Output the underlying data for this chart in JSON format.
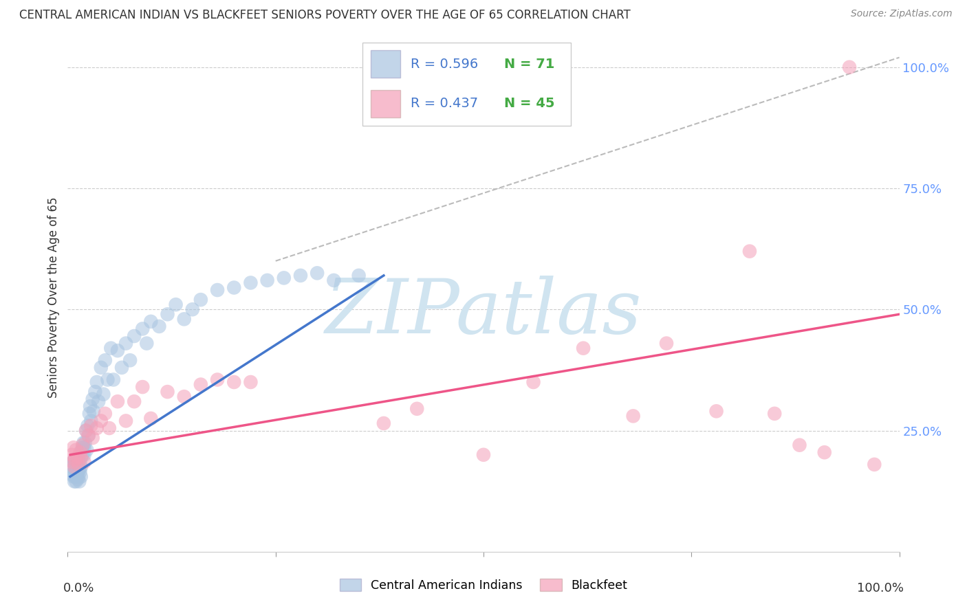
{
  "title": "CENTRAL AMERICAN INDIAN VS BLACKFEET SENIORS POVERTY OVER THE AGE OF 65 CORRELATION CHART",
  "source": "Source: ZipAtlas.com",
  "ylabel": "Seniors Poverty Over the Age of 65",
  "legend_blue_r": "R = 0.596",
  "legend_blue_n": "N = 71",
  "legend_pink_r": "R = 0.437",
  "legend_pink_n": "N = 45",
  "legend_label_blue": "Central American Indians",
  "legend_label_pink": "Blackfeet",
  "blue_color": "#A8C4E0",
  "pink_color": "#F4A0B8",
  "blue_line_color": "#4477CC",
  "pink_line_color": "#EE5588",
  "r_color": "#4477CC",
  "n_color": "#44AA44",
  "diagonal_color": "#BBBBBB",
  "ytick_color": "#6699FF",
  "watermark_color": "#D0E4F0",
  "background_color": "#FFFFFF",
  "blue_scatter_x": [
    0.005,
    0.005,
    0.007,
    0.007,
    0.008,
    0.008,
    0.009,
    0.009,
    0.01,
    0.01,
    0.01,
    0.011,
    0.011,
    0.012,
    0.012,
    0.013,
    0.013,
    0.014,
    0.014,
    0.015,
    0.015,
    0.016,
    0.016,
    0.017,
    0.018,
    0.018,
    0.019,
    0.02,
    0.02,
    0.021,
    0.022,
    0.023,
    0.024,
    0.025,
    0.026,
    0.027,
    0.028,
    0.03,
    0.031,
    0.033,
    0.035,
    0.037,
    0.04,
    0.043,
    0.045,
    0.048,
    0.052,
    0.055,
    0.06,
    0.065,
    0.07,
    0.075,
    0.08,
    0.09,
    0.095,
    0.1,
    0.11,
    0.12,
    0.13,
    0.14,
    0.15,
    0.16,
    0.18,
    0.2,
    0.22,
    0.24,
    0.26,
    0.28,
    0.3,
    0.32,
    0.35
  ],
  "blue_scatter_y": [
    0.175,
    0.16,
    0.185,
    0.155,
    0.19,
    0.145,
    0.17,
    0.155,
    0.185,
    0.165,
    0.145,
    0.175,
    0.16,
    0.165,
    0.15,
    0.19,
    0.155,
    0.17,
    0.145,
    0.185,
    0.165,
    0.175,
    0.155,
    0.21,
    0.2,
    0.215,
    0.225,
    0.215,
    0.2,
    0.225,
    0.25,
    0.21,
    0.26,
    0.24,
    0.285,
    0.3,
    0.27,
    0.315,
    0.29,
    0.33,
    0.35,
    0.31,
    0.38,
    0.325,
    0.395,
    0.355,
    0.42,
    0.355,
    0.415,
    0.38,
    0.43,
    0.395,
    0.445,
    0.46,
    0.43,
    0.475,
    0.465,
    0.49,
    0.51,
    0.48,
    0.5,
    0.52,
    0.54,
    0.545,
    0.555,
    0.56,
    0.565,
    0.57,
    0.575,
    0.56,
    0.57
  ],
  "pink_scatter_x": [
    0.005,
    0.006,
    0.007,
    0.008,
    0.009,
    0.01,
    0.012,
    0.013,
    0.015,
    0.016,
    0.018,
    0.02,
    0.022,
    0.025,
    0.028,
    0.03,
    0.035,
    0.04,
    0.045,
    0.05,
    0.06,
    0.07,
    0.08,
    0.09,
    0.1,
    0.12,
    0.14,
    0.16,
    0.18,
    0.2,
    0.22,
    0.38,
    0.42,
    0.5,
    0.56,
    0.62,
    0.68,
    0.72,
    0.78,
    0.82,
    0.85,
    0.88,
    0.91,
    0.94,
    0.97
  ],
  "pink_scatter_y": [
    0.2,
    0.185,
    0.215,
    0.175,
    0.19,
    0.21,
    0.195,
    0.18,
    0.205,
    0.195,
    0.22,
    0.185,
    0.25,
    0.24,
    0.26,
    0.235,
    0.255,
    0.27,
    0.285,
    0.255,
    0.31,
    0.27,
    0.31,
    0.34,
    0.275,
    0.33,
    0.32,
    0.345,
    0.355,
    0.35,
    0.35,
    0.265,
    0.295,
    0.2,
    0.35,
    0.42,
    0.28,
    0.43,
    0.29,
    0.62,
    0.285,
    0.22,
    0.205,
    1.0,
    0.18
  ],
  "blue_line_x": [
    0.003,
    0.38
  ],
  "blue_line_y": [
    0.155,
    0.57
  ],
  "pink_line_x": [
    0.003,
    1.0
  ],
  "pink_line_y": [
    0.2,
    0.49
  ],
  "diag_line_x": [
    0.25,
    1.0
  ],
  "diag_line_y": [
    0.6,
    1.02
  ],
  "xmin": 0.0,
  "xmax": 1.0,
  "ymin": 0.0,
  "ymax": 1.05
}
